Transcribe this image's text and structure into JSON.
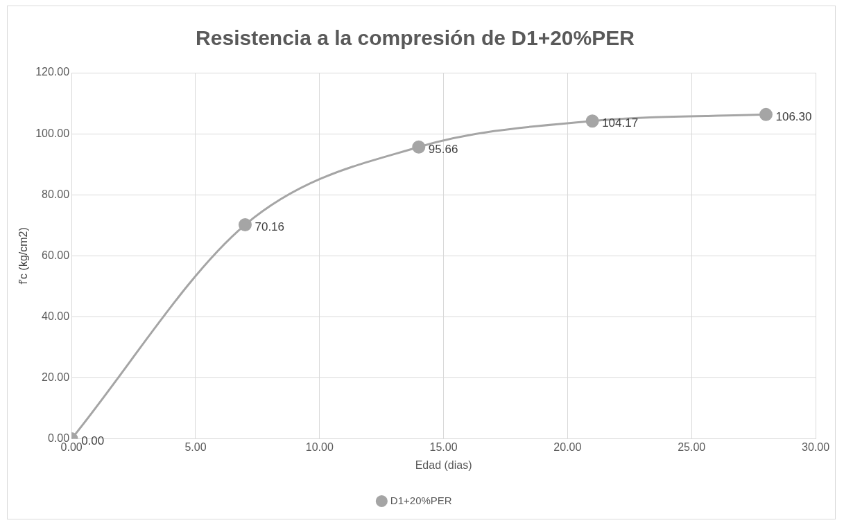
{
  "chart_data": {
    "type": "line",
    "title": "Resistencia a la compresión de D1+20%PER",
    "xlabel": "Edad (dias)",
    "ylabel": "f'c (kg/cm2)",
    "x": [
      0,
      7,
      14,
      21,
      28
    ],
    "series": [
      {
        "name": "D1+20%PER",
        "color": "#a5a5a5",
        "values": [
          0,
          70.16,
          95.66,
          104.17,
          106.3
        ],
        "value_labels": [
          "0.00",
          "70.16",
          "95.66",
          "104.17",
          "106.30"
        ]
      }
    ],
    "xlim": [
      0,
      30
    ],
    "xticks": [
      {
        "value": 0,
        "label": "0.00"
      },
      {
        "value": 5,
        "label": "5.00"
      },
      {
        "value": 10,
        "label": "10.00"
      },
      {
        "value": 15,
        "label": "15.00"
      },
      {
        "value": 20,
        "label": "20.00"
      },
      {
        "value": 25,
        "label": "25.00"
      },
      {
        "value": 30,
        "label": "30.00"
      }
    ],
    "ylim": [
      0,
      120
    ],
    "yticks": [
      {
        "value": 0,
        "label": "0.00"
      },
      {
        "value": 20,
        "label": "20.00"
      },
      {
        "value": 40,
        "label": "40.00"
      },
      {
        "value": 60,
        "label": "60.00"
      },
      {
        "value": 80,
        "label": "80.00"
      },
      {
        "value": 100,
        "label": "100.00"
      },
      {
        "value": 120,
        "label": "120.00"
      }
    ],
    "grid": true,
    "legend": "bottom",
    "marker": "circle",
    "line_style": "solid"
  }
}
